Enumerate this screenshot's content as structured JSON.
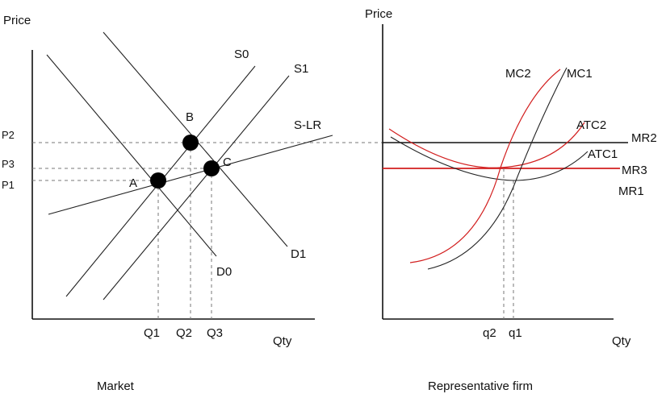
{
  "colors": {
    "line": "#222222",
    "red": "#d21e1e",
    "dash": "#777777"
  },
  "market": {
    "y_axis_label": "Price",
    "x_axis_label": "Qty",
    "caption": "Market",
    "curves": {
      "s0": "S0",
      "s1": "S1",
      "slr": "S-LR",
      "d0": "D0",
      "d1": "D1"
    },
    "points": {
      "a": "A",
      "b": "B",
      "c": "C"
    },
    "price_ticks": {
      "p2": "P2",
      "p3": "P3",
      "p1": "P1"
    },
    "qty_ticks": {
      "q1": "Q1",
      "q2": "Q2",
      "q3": "Q3"
    }
  },
  "firm": {
    "y_axis_label": "Price",
    "x_axis_label": "Qty",
    "caption": "Representative firm",
    "curves": {
      "mc2": "MC2",
      "mc1": "MC1",
      "atc2": "ATC2",
      "atc1": "ATC1",
      "mr2": "MR2",
      "mr3": "MR3",
      "mr1": "MR1"
    },
    "qty_ticks": {
      "q2": "q2",
      "q1": "q1"
    }
  }
}
